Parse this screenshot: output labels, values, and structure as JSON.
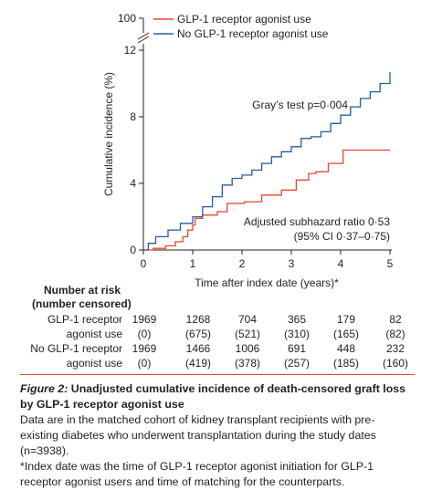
{
  "chart_data": {
    "type": "line",
    "step": true,
    "xlabel": "Time after index date (years)*",
    "ylabel": "Cumulative incidence (%)",
    "xlim": [
      0,
      5
    ],
    "ylim": [
      0,
      12
    ],
    "xticks": [
      "0",
      "1",
      "2",
      "3",
      "4",
      "5"
    ],
    "yticks": [
      "0",
      "4",
      "8",
      "12",
      "100"
    ],
    "y_axis_break": true,
    "legend_position": "top-left",
    "annotations": {
      "test": "Gray’s test p=0·004",
      "shr_line1": "Adjusted subhazard ratio 0·53",
      "shr_line2": "(95% CI 0·37–0·75)"
    },
    "series": [
      {
        "name": "GLP-1 receptor agonist use",
        "color": "#e8452c",
        "x": [
          0,
          0.2,
          0.45,
          0.65,
          0.8,
          0.9,
          1.0,
          1.05,
          1.2,
          1.5,
          1.7,
          2.05,
          2.4,
          2.8,
          3.1,
          3.35,
          3.5,
          3.75,
          4.05,
          4.3,
          5.0
        ],
        "y": [
          0,
          0.1,
          0.25,
          0.5,
          0.8,
          1.2,
          1.5,
          1.9,
          2.1,
          2.3,
          2.8,
          2.9,
          3.3,
          3.6,
          4.2,
          4.6,
          4.7,
          5.2,
          6.0,
          6.0,
          6.0
        ]
      },
      {
        "name": "No GLP-1 receptor agonist use",
        "color": "#1f5fa3",
        "x": [
          0,
          0.1,
          0.25,
          0.5,
          0.75,
          1.0,
          1.2,
          1.4,
          1.6,
          1.8,
          2.0,
          2.2,
          2.4,
          2.6,
          2.8,
          3.0,
          3.2,
          3.4,
          3.6,
          3.8,
          4.0,
          4.2,
          4.4,
          4.6,
          4.8,
          5.0
        ],
        "y": [
          0,
          0.4,
          0.8,
          1.2,
          1.6,
          2.0,
          2.6,
          3.2,
          3.9,
          4.3,
          4.5,
          4.8,
          5.2,
          5.6,
          5.9,
          6.2,
          6.7,
          6.8,
          7.1,
          7.6,
          8.1,
          8.6,
          9.1,
          9.5,
          10.0,
          10.7
        ]
      }
    ]
  },
  "risk_table": {
    "header_line1": "Number at risk",
    "header_line2": "(number censored)",
    "rows": [
      {
        "label": "GLP-1 receptor",
        "values": [
          "1969",
          "1268",
          "704",
          "365",
          "179",
          "82"
        ]
      },
      {
        "label": "agonist use",
        "values": [
          "(0)",
          "(675)",
          "(521)",
          "(310)",
          "(165)",
          "(82)"
        ]
      },
      {
        "label": "No GLP-1 receptor",
        "values": [
          "1969",
          "1466",
          "1006",
          "691",
          "448",
          "232"
        ]
      },
      {
        "label": "agonist use",
        "values": [
          "(0)",
          "(419)",
          "(378)",
          "(257)",
          "(185)",
          "(160)"
        ]
      }
    ]
  },
  "caption": {
    "figure_label": "Figure 2:",
    "title": " Unadjusted cumulative incidence of death-censored graft loss by GLP-1 receptor agonist use",
    "body": "Data are in the matched cohort of kidney transplant recipients with pre-existing diabetes who underwent transplantation during the study dates (n=3938).",
    "footnote": "*Index date was the time of GLP-1 receptor agonist initiation for GLP-1 receptor agonist users and time of matching for the counterparts."
  }
}
